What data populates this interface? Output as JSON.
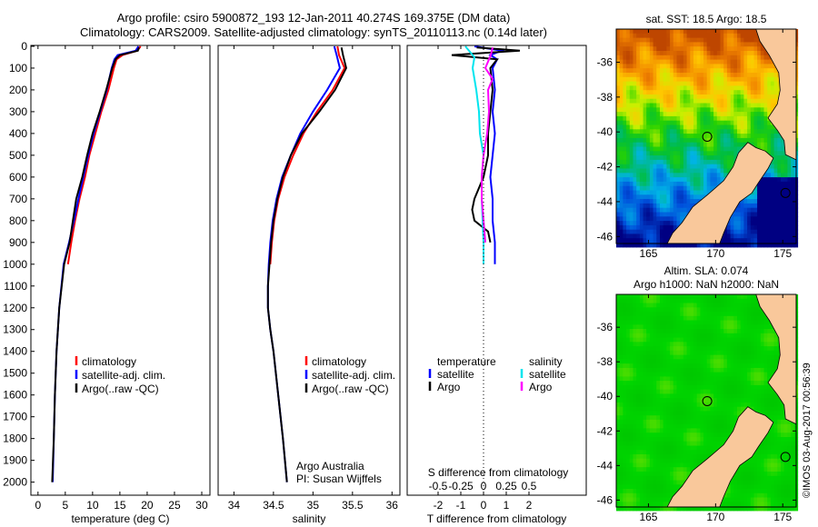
{
  "title_line1": "Argo profile: csiro 5900872_193 12-Jan-2011 40.274S 169.375E (DM data)",
  "title_line2": "Climatology: CARS2009. Satellite-adjusted climatology: synTS_20110113.nc (0.14d later)",
  "credit": "©IMOS 03-Aug-2017 00:56:39",
  "colors": {
    "climatology": "#ff0000",
    "satellite": "#0000ff",
    "argo": "#000000",
    "sal_satellite": "#00e5ee",
    "sal_argo": "#ff00ff",
    "land": "#f9c89b"
  },
  "chart_data": [
    {
      "type": "line",
      "name": "temperature-profile",
      "xlabel": "temperature (deg C)",
      "xlim": [
        -1.3,
        31.5
      ],
      "ylim": [
        2060,
        -4
      ],
      "xticks": [
        0,
        5,
        10,
        15,
        20,
        25,
        30
      ],
      "yticks": [
        0,
        100,
        200,
        300,
        400,
        500,
        600,
        700,
        800,
        900,
        1000,
        1100,
        1200,
        1300,
        1400,
        1500,
        1600,
        1700,
        1800,
        1900,
        2000
      ],
      "legend": [
        "climatology",
        "satellite-adj. clim.",
        "Argo(..raw -QC)"
      ],
      "series": [
        {
          "name": "climatology",
          "color": "#ff0000",
          "depth": [
            0,
            20,
            40,
            60,
            100,
            200,
            300,
            400,
            500,
            600,
            700,
            800,
            900,
            1000
          ],
          "values": [
            18.8,
            18.2,
            15.5,
            14.4,
            13.9,
            12.9,
            11.6,
            10.5,
            9.4,
            8.6,
            7.6,
            6.8,
            6.1,
            5.5
          ]
        },
        {
          "name": "satellite-adj. clim.",
          "color": "#0000ff",
          "depth": [
            0,
            20,
            40,
            60,
            100,
            200,
            300,
            400,
            500,
            600,
            700,
            800,
            900,
            1000,
            1200,
            1400,
            1600,
            1800,
            2000
          ],
          "values": [
            18.4,
            17.9,
            14.6,
            14.0,
            13.5,
            12.6,
            11.4,
            10.2,
            9.2,
            8.3,
            7.4,
            6.6,
            5.7,
            4.7,
            3.9,
            3.4,
            3.1,
            2.9,
            2.7
          ]
        },
        {
          "name": "Argo",
          "color": "#000000",
          "depth": [
            5,
            20,
            40,
            60,
            100,
            200,
            300,
            400,
            500,
            600,
            700,
            800,
            900,
            1000,
            1200,
            1400,
            1600,
            1800,
            2000
          ],
          "values": [
            18.5,
            18.3,
            15.0,
            14.2,
            13.6,
            12.5,
            11.3,
            10.0,
            9.0,
            8.1,
            7.0,
            6.4,
            5.8,
            4.8,
            3.9,
            3.4,
            3.1,
            2.9,
            2.6
          ]
        }
      ]
    },
    {
      "type": "line",
      "name": "salinity-profile",
      "xlabel": "salinity",
      "xlim": [
        33.8,
        36.1
      ],
      "ylim": [
        2060,
        -4
      ],
      "xticks": [
        34,
        34.5,
        35,
        35.5,
        36
      ],
      "legend": [
        "climatology",
        "satellite-adj. clim.",
        "Argo(..raw -QC)"
      ],
      "annotation": [
        "Argo Australia",
        "PI: Susan Wijffels"
      ],
      "series": [
        {
          "name": "climatology",
          "color": "#ff0000",
          "depth": [
            0,
            40,
            100,
            200,
            300,
            400,
            500,
            600,
            700,
            800,
            900,
            1000
          ],
          "values": [
            35.31,
            35.33,
            35.4,
            35.25,
            35.05,
            34.88,
            34.75,
            34.64,
            34.56,
            34.51,
            34.48,
            34.46
          ]
        },
        {
          "name": "satellite-adj. clim.",
          "color": "#0000ff",
          "depth": [
            0,
            40,
            100,
            200,
            300,
            400,
            500,
            600,
            700,
            800,
            900,
            1000,
            1100,
            1200,
            1300,
            1400,
            1600,
            1800,
            2000
          ],
          "values": [
            35.27,
            35.3,
            35.34,
            35.18,
            35.0,
            34.84,
            34.72,
            34.61,
            34.54,
            34.49,
            34.46,
            34.44,
            34.43,
            34.43,
            34.46,
            34.5,
            34.56,
            34.62,
            34.67
          ]
        },
        {
          "name": "Argo",
          "color": "#000000",
          "depth": [
            5,
            40,
            100,
            200,
            300,
            400,
            500,
            600,
            700,
            800,
            900,
            1000,
            1100,
            1200,
            1300,
            1400,
            1600,
            1800,
            2000
          ],
          "values": [
            35.36,
            35.38,
            35.42,
            35.28,
            35.08,
            34.86,
            34.72,
            34.62,
            34.55,
            34.5,
            34.47,
            34.45,
            34.43,
            34.43,
            34.46,
            34.5,
            34.56,
            34.62,
            34.67
          ]
        }
      ]
    },
    {
      "type": "line",
      "name": "difference-profile",
      "xlabel": "T difference from climatology",
      "x2label": "S difference from climatology",
      "xlim": [
        -3.36,
        4.52
      ],
      "ylim": [
        2060,
        -4
      ],
      "xticks": [
        -2,
        -1,
        0,
        1,
        2
      ],
      "x2ticks": [
        "-0.5",
        "-0.25",
        "0",
        "0.25",
        "0.5"
      ],
      "legend": {
        "temperature_title": "temperature",
        "salinity_title": "salinity",
        "t_satellite": "satellite",
        "t_argo": "Argo",
        "s_satellite": "satellite",
        "s_argo": "Argo"
      },
      "series": [
        {
          "name": "T satellite",
          "color": "#0000ff",
          "depth": [
            0,
            20,
            40,
            60,
            100,
            200,
            300,
            400,
            500,
            600,
            700,
            800,
            900,
            1000
          ],
          "values": [
            -0.4,
            0.8,
            0.3,
            0.6,
            0.4,
            0.5,
            0.4,
            0.5,
            0.4,
            0.3,
            0.4,
            0.4,
            0.5,
            0.5
          ]
        },
        {
          "name": "T Argo",
          "color": "#000000",
          "depth": [
            5,
            20,
            40,
            60,
            100,
            200,
            300,
            400,
            500,
            600,
            700,
            750,
            800,
            850,
            900
          ],
          "values": [
            -0.3,
            1.6,
            -1.4,
            0.6,
            0.3,
            0.4,
            0.3,
            0.2,
            0.2,
            0.0,
            -0.4,
            -0.5,
            -0.4,
            0.2,
            0.3
          ]
        },
        {
          "name": "S satellite",
          "color": "#00e5ee",
          "depth": [
            0,
            50,
            100,
            200,
            300,
            400,
            500,
            600,
            700,
            800,
            900,
            1000
          ],
          "values": [
            -0.2,
            -0.1,
            -0.12,
            -0.08,
            -0.05,
            -0.04,
            0.0,
            -0.02,
            -0.02,
            -0.01,
            0.0,
            0.0
          ]
        },
        {
          "name": "S Argo",
          "color": "#ff00ff",
          "depth": [
            5,
            40,
            100,
            150,
            200,
            300,
            400,
            500,
            600,
            700,
            800,
            900
          ],
          "values": [
            0.1,
            0.08,
            0.02,
            0.1,
            0.05,
            0.06,
            0.04,
            0.0,
            -0.02,
            -0.02,
            0.0,
            0.02
          ]
        }
      ]
    },
    {
      "type": "heatmap",
      "name": "sst-map",
      "title": "sat. SST: 18.5 Argo: 18.5",
      "xlim": [
        162.6,
        176.0
      ],
      "ylim": [
        -46.4,
        -34.1
      ],
      "xticks": [
        165,
        170,
        175
      ],
      "yticks": [
        -36,
        -38,
        -40,
        -42,
        -44,
        -46
      ],
      "markers": [
        {
          "lon": 169.375,
          "lat": -40.274
        },
        {
          "lon": 175.2,
          "lat": -43.5
        }
      ]
    },
    {
      "type": "heatmap",
      "name": "sla-map",
      "title": "Altim. SLA: 0.074",
      "subtitle": "Argo h1000: NaN h2000: NaN",
      "xlim": [
        162.6,
        176.0
      ],
      "ylim": [
        -46.4,
        -34.1
      ],
      "xticks": [
        165,
        170,
        175
      ],
      "yticks": [
        -36,
        -38,
        -40,
        -42,
        -44,
        -46
      ],
      "markers": [
        {
          "lon": 169.375,
          "lat": -40.274
        },
        {
          "lon": 175.2,
          "lat": -43.5
        }
      ]
    }
  ]
}
